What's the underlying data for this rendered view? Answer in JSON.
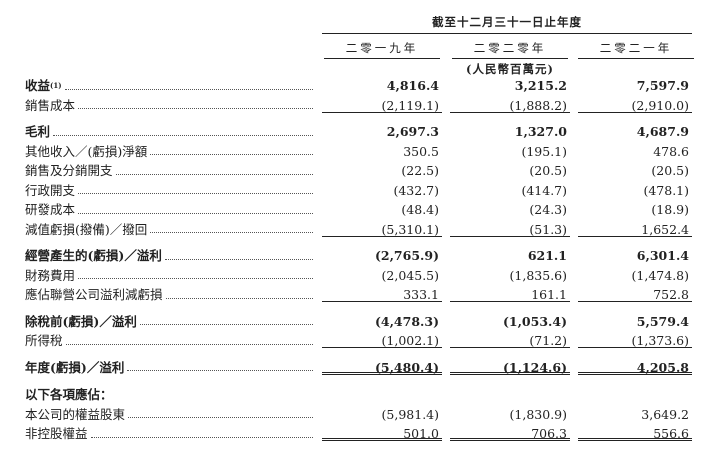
{
  "header": {
    "period": "截至十二月三十一日止年度",
    "years": [
      "二零一九年",
      "二零二零年",
      "二零二一年"
    ],
    "unit": "(人民幣百萬元)"
  },
  "table": {
    "rows": [
      {
        "label": "收益",
        "footnote": "(1)",
        "values": [
          "4,816.4",
          "3,215.2",
          "7,597.9"
        ],
        "bold": true
      },
      {
        "label": "銷售成本",
        "values": [
          "(2,119.1)",
          "(1,888.2)",
          "(2,910.0)"
        ],
        "rule": "single"
      },
      {
        "label": "毛利",
        "values": [
          "2,697.3",
          "1,327.0",
          "4,687.9"
        ],
        "bold": true
      },
      {
        "label": "其他收入／(虧損)淨額",
        "values": [
          "350.5",
          "(195.1)",
          "478.6"
        ]
      },
      {
        "label": "銷售及分銷開支",
        "values": [
          "(22.5)",
          "(20.5)",
          "(20.5)"
        ]
      },
      {
        "label": "行政開支",
        "values": [
          "(432.7)",
          "(414.7)",
          "(478.1)"
        ]
      },
      {
        "label": "研發成本",
        "values": [
          "(48.4)",
          "(24.3)",
          "(18.9)"
        ]
      },
      {
        "label": "減值虧損(撥備)／撥回",
        "values": [
          "(5,310.1)",
          "(51.3)",
          "1,652.4"
        ],
        "rule": "single"
      },
      {
        "label": "經營產生的(虧損)／溢利",
        "values": [
          "(2,765.9)",
          "621.1",
          "6,301.4"
        ],
        "bold": true
      },
      {
        "label": "財務費用",
        "values": [
          "(2,045.5)",
          "(1,835.6)",
          "(1,474.8)"
        ]
      },
      {
        "label": "應佔聯營公司溢利減虧損",
        "values": [
          "333.1",
          "161.1",
          "752.8"
        ],
        "rule": "single"
      },
      {
        "label": "除稅前(虧損)／溢利",
        "values": [
          "(4,478.3)",
          "(1,053.4)",
          "5,579.4"
        ],
        "bold": true
      },
      {
        "label": "所得稅",
        "values": [
          "(1,002.1)",
          "(71.2)",
          "(1,373.6)"
        ],
        "rule": "single"
      },
      {
        "label": "年度(虧損)／溢利",
        "values": [
          "(5,480.4)",
          "(1,124.6)",
          "4,205.8"
        ],
        "bold": true,
        "rule": "double"
      },
      {
        "label": "以下各項應佔：",
        "bold": true,
        "section": true
      },
      {
        "label": "本公司的權益股東",
        "values": [
          "(5,981.4)",
          "(1,830.9)",
          "3,649.2"
        ]
      },
      {
        "label": "非控股權益",
        "values": [
          "501.0",
          "706.3",
          "556.6"
        ],
        "rule": "double"
      }
    ]
  }
}
